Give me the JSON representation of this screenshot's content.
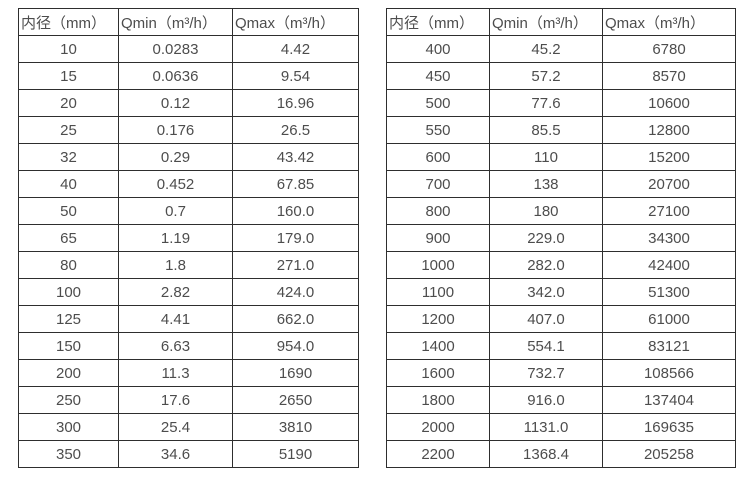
{
  "page": {
    "background_color": "#ffffff",
    "border_color": "#2e2e2e",
    "text_color": "#4d4d4d"
  },
  "tables": [
    {
      "name": "small-diameter-flow-table",
      "headers": [
        "内径（mm）",
        "Qmin（m³/h）",
        "Qmax（m³/h）"
      ],
      "rows": [
        [
          "10",
          "0.0283",
          "4.42"
        ],
        [
          "15",
          "0.0636",
          "9.54"
        ],
        [
          "20",
          "0.12",
          "16.96"
        ],
        [
          "25",
          "0.176",
          "26.5"
        ],
        [
          "32",
          "0.29",
          "43.42"
        ],
        [
          "40",
          "0.452",
          "67.85"
        ],
        [
          "50",
          "0.7",
          "160.0"
        ],
        [
          "65",
          "1.19",
          "179.0"
        ],
        [
          "80",
          "1.8",
          "271.0"
        ],
        [
          "100",
          "2.82",
          "424.0"
        ],
        [
          "125",
          "4.41",
          "662.0"
        ],
        [
          "150",
          "6.63",
          "954.0"
        ],
        [
          "200",
          "11.3",
          "1690"
        ],
        [
          "250",
          "17.6",
          "2650"
        ],
        [
          "300",
          "25.4",
          "3810"
        ],
        [
          "350",
          "34.6",
          "5190"
        ]
      ]
    },
    {
      "name": "large-diameter-flow-table",
      "headers": [
        "内径（mm）",
        "Qmin（m³/h）",
        "Qmax（m³/h）"
      ],
      "rows": [
        [
          "400",
          "45.2",
          "6780"
        ],
        [
          "450",
          "57.2",
          "8570"
        ],
        [
          "500",
          "77.6",
          "10600"
        ],
        [
          "550",
          "85.5",
          "12800"
        ],
        [
          "600",
          "110",
          "15200"
        ],
        [
          "700",
          "138",
          "20700"
        ],
        [
          "800",
          "180",
          "27100"
        ],
        [
          "900",
          "229.0",
          "34300"
        ],
        [
          "1000",
          "282.0",
          "42400"
        ],
        [
          "1100",
          "342.0",
          "51300"
        ],
        [
          "1200",
          "407.0",
          "61000"
        ],
        [
          "1400",
          "554.1",
          "83121"
        ],
        [
          "1600",
          "732.7",
          "108566"
        ],
        [
          "1800",
          "916.0",
          "137404"
        ],
        [
          "2000",
          "1131.0",
          "169635"
        ],
        [
          "2200",
          "1368.4",
          "205258"
        ]
      ]
    }
  ]
}
